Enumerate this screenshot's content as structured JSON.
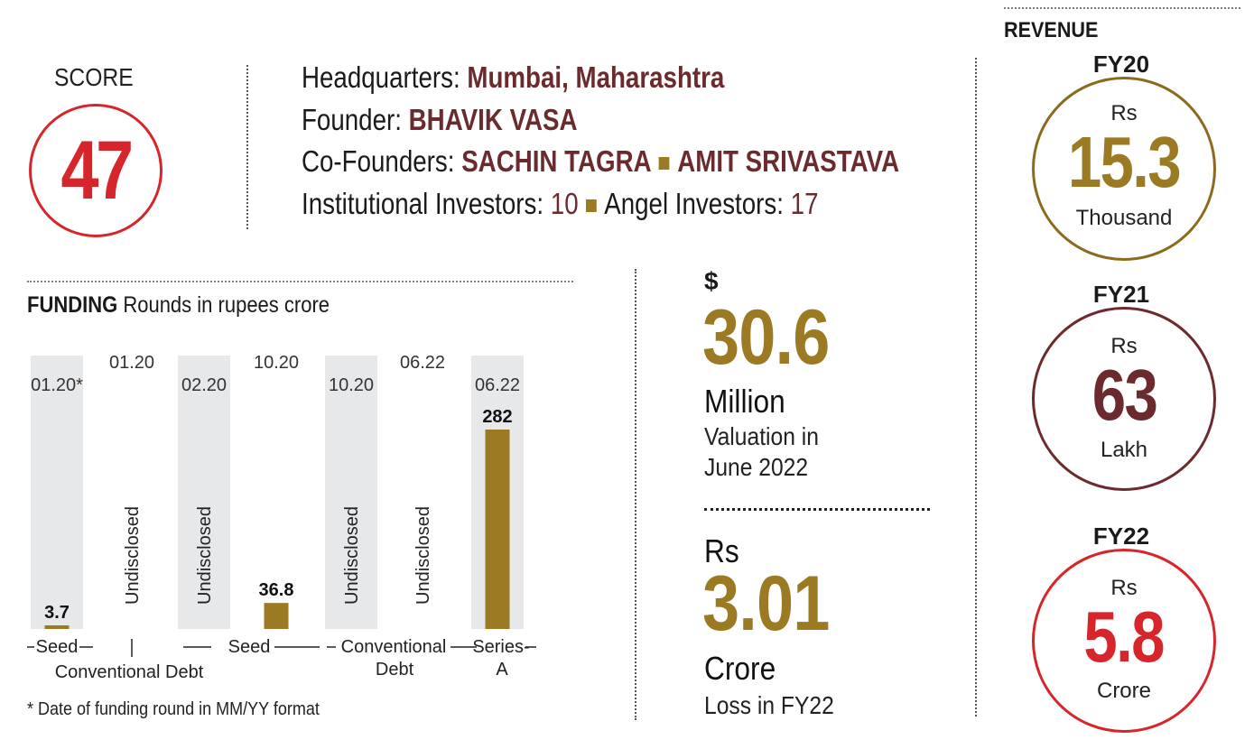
{
  "score": {
    "label": "SCORE",
    "value": "47"
  },
  "info": {
    "headquarters_label": "Headquarters:",
    "headquarters": "Mumbai, Maharashtra",
    "founder_label": "Founder:",
    "founder": "BHAVIK VASA",
    "cofounders_label": "Co-Founders:",
    "cofounders": [
      "SACHIN TAGRA",
      "AMIT SRIVASTAVA"
    ],
    "institutional_label": "Institutional Investors:",
    "institutional": "10",
    "angel_label": "Angel Investors:",
    "angel": "17"
  },
  "funding": {
    "title_bold": "FUNDING",
    "title_rest": "Rounds in rupees crore",
    "footnote": "* Date of funding round in  MM/YY format"
  },
  "chart_data": {
    "type": "bar",
    "title": "FUNDING",
    "subtitle": "Rounds in rupees crore",
    "unit": "rupees crore",
    "rounds": [
      {
        "date": "01.20*",
        "value": 3.7,
        "label": "3.7",
        "disclosed": true
      },
      {
        "date": "01.20",
        "value": null,
        "label": "Undisclosed",
        "disclosed": false
      },
      {
        "date": "02.20",
        "value": null,
        "label": "Undisclosed",
        "disclosed": false
      },
      {
        "date": "10.20",
        "value": 36.8,
        "label": "36.8",
        "disclosed": true
      },
      {
        "date": "10.20",
        "value": null,
        "label": "Undisclosed",
        "disclosed": false
      },
      {
        "date": "06.22",
        "value": null,
        "label": "Undisclosed",
        "disclosed": false
      },
      {
        "date": "06.22",
        "value": 282,
        "label": "282",
        "disclosed": true
      }
    ],
    "groups": [
      "Seed",
      "Conventional Debt",
      "Seed",
      "Conventional Debt",
      "Series A"
    ],
    "ylim": [
      0,
      282
    ],
    "bar_color": "#9b7a23",
    "band_color": "#e6e8ea"
  },
  "valuation": {
    "currency": "$",
    "value": "30.6",
    "unit": "Million",
    "desc_line1": "Valuation in",
    "desc_line2": "June 2022"
  },
  "loss": {
    "currency": "Rs",
    "value": "3.01",
    "unit": "Crore",
    "desc": "Loss in FY22"
  },
  "revenue": {
    "title": "REVENUE",
    "years": [
      {
        "year": "FY20",
        "currency": "Rs",
        "value": "15.3",
        "unit": "Thousand",
        "color": "#8a6b1e",
        "value_color": "#9b7a23"
      },
      {
        "year": "FY21",
        "currency": "Rs",
        "value": "63",
        "unit": "Lakh",
        "color": "#6b2b2e",
        "value_color": "#6b2b2e"
      },
      {
        "year": "FY22",
        "currency": "Rs",
        "value": "5.8",
        "unit": "Crore",
        "color": "#d7262b",
        "value_color": "#d7262b"
      }
    ]
  }
}
